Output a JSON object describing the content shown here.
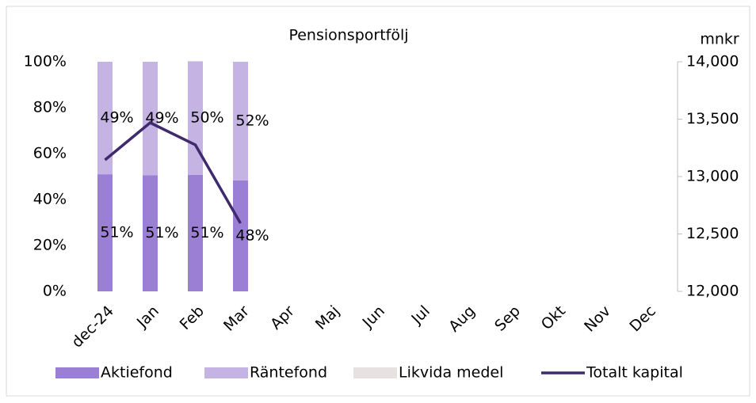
{
  "chart_data": {
    "type": "bar",
    "stacked": true,
    "title": "Pensionsportfölj",
    "y2_label": "mnkr",
    "categories": [
      "dec-24",
      "Jan",
      "Feb",
      "Mar",
      "Apr",
      "Maj",
      "Jun",
      "Jul",
      "Aug",
      "Sep",
      "Okt",
      "Nov",
      "Dec"
    ],
    "series": [
      {
        "name": "Aktiefond",
        "color": "#9b7fd4",
        "values": [
          51,
          50.6,
          50.7,
          48.3,
          null,
          null,
          null,
          null,
          null,
          null,
          null,
          null,
          null
        ],
        "value_labels": [
          "51%",
          "51%",
          "51%",
          "48%",
          null,
          null,
          null,
          null,
          null,
          null,
          null,
          null,
          null
        ]
      },
      {
        "name": "Räntefond",
        "color": "#c5b3e3",
        "values": [
          49,
          49.4,
          49.5,
          51.7,
          null,
          null,
          null,
          null,
          null,
          null,
          null,
          null,
          null
        ],
        "value_labels": [
          "49%",
          "49%",
          "50%",
          "52%",
          null,
          null,
          null,
          null,
          null,
          null,
          null,
          null,
          null
        ]
      },
      {
        "name": "Likvida medel",
        "color": "#e7e1e1",
        "values": [
          0,
          0,
          0,
          0,
          null,
          null,
          null,
          null,
          null,
          null,
          null,
          null,
          null
        ]
      },
      {
        "name": "Totalt kapital",
        "type": "line",
        "axis": "y2",
        "color": "#3f2a6e",
        "values": [
          13145,
          13469,
          13276,
          12593,
          null,
          null,
          null,
          null,
          null,
          null,
          null,
          null,
          null
        ]
      }
    ],
    "ylim": [
      0,
      100
    ],
    "yticks": [
      {
        "value": 0,
        "label": "0%"
      },
      {
        "value": 20,
        "label": "20%"
      },
      {
        "value": 40,
        "label": "40%"
      },
      {
        "value": 60,
        "label": "60%"
      },
      {
        "value": 80,
        "label": "80%"
      },
      {
        "value": 100,
        "label": "100%"
      }
    ],
    "y2lim": [
      12000,
      14000
    ],
    "y2ticks": [
      {
        "value": 12000,
        "label": "12,000"
      },
      {
        "value": 12500,
        "label": "12,500"
      },
      {
        "value": 13000,
        "label": "13,000"
      },
      {
        "value": 13500,
        "label": "13,500"
      },
      {
        "value": 14000,
        "label": "14,000"
      }
    ],
    "grid": false,
    "legend": "bottom"
  }
}
